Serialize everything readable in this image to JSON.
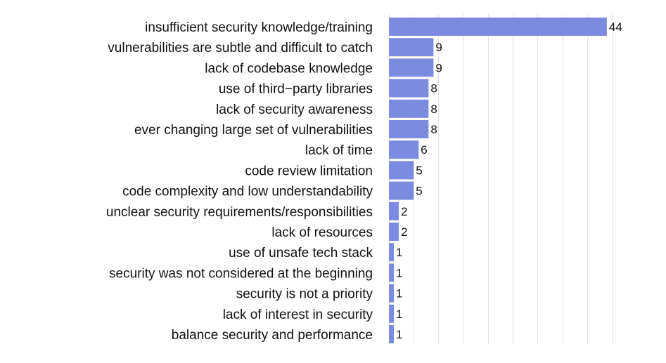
{
  "chart_data": {
    "type": "bar",
    "orientation": "horizontal",
    "title": "",
    "xlabel": "",
    "ylabel": "",
    "grid": true,
    "legend": "none",
    "bar_color": "#7b8ce0",
    "xlim": [
      0,
      46
    ],
    "categories": [
      "insufficient security knowledge/training",
      "vulnerabilities are subtle and difficult to catch",
      "lack of codebase knowledge",
      "use of third−party libraries",
      "lack of security awareness",
      "ever changing large set of vulnerabilities",
      "lack of time",
      "code review limitation",
      "code complexity and low understandability",
      "unclear security requirements/responsibilities",
      "lack of resources",
      "use of unsafe tech stack",
      "security was not considered at the beginning",
      "security is not a priority",
      "lack of interest in security",
      "balance security and performance"
    ],
    "values": [
      44,
      9,
      9,
      8,
      8,
      8,
      6,
      5,
      5,
      2,
      2,
      1,
      1,
      1,
      1,
      1
    ],
    "value_labels": [
      "44",
      "9",
      "9",
      "8",
      "8",
      "8",
      "6",
      "5",
      "5",
      "2",
      "2",
      "1",
      "1",
      "1",
      "1",
      "1"
    ]
  }
}
